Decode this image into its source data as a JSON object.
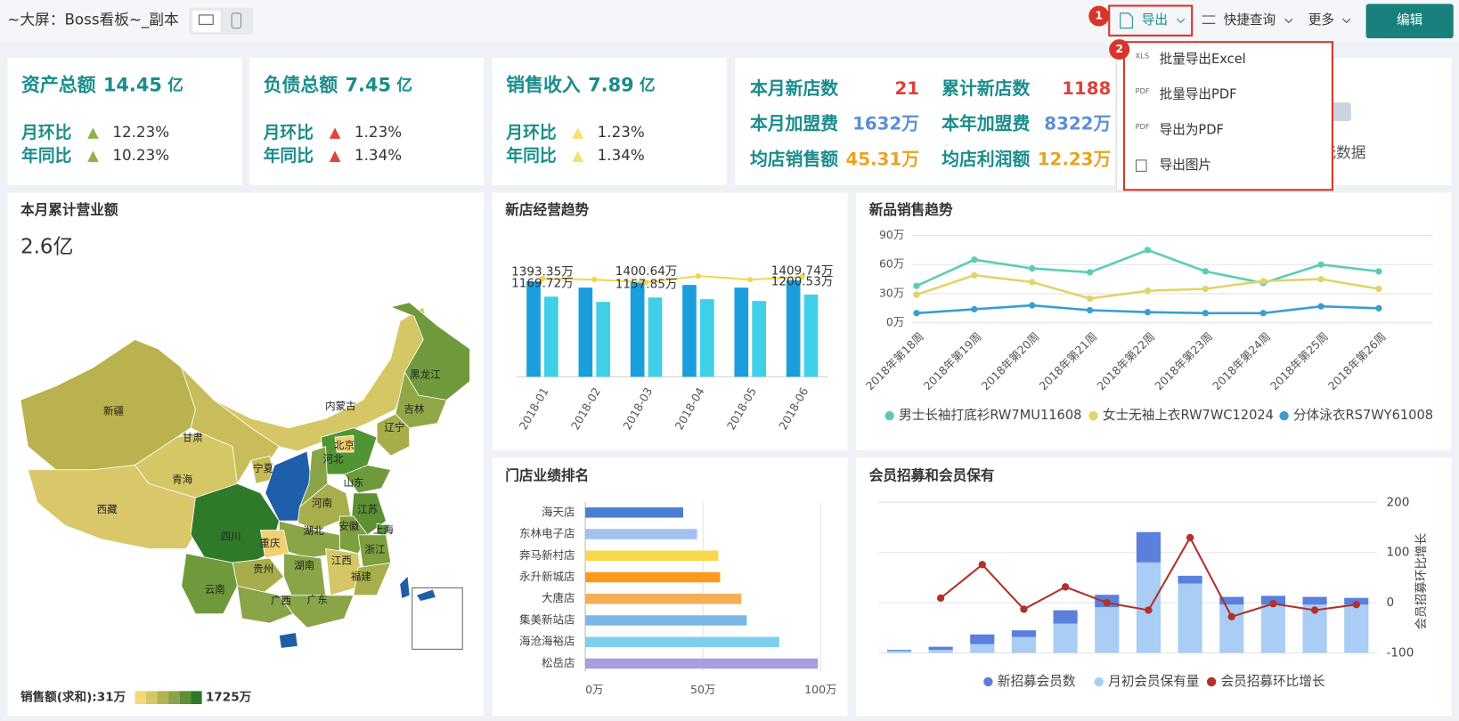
{
  "header": {
    "title": "~大屏：Boss看板~_副本",
    "export": "导出",
    "quick_query": "快捷查询",
    "more": "更多",
    "edit": "编辑",
    "step_badges": [
      "1",
      "2"
    ],
    "export_menu": [
      {
        "icon": "XLS",
        "label": "批量导出Excel"
      },
      {
        "icon": "PDF",
        "label": "批量导出PDF"
      },
      {
        "icon": "PDF",
        "label": "导出为PDF"
      },
      {
        "icon": null,
        "label": "导出图片"
      }
    ]
  },
  "kpi_cards": [
    {
      "title": "资产总额",
      "value": "14.45",
      "unit": "亿",
      "rows": [
        {
          "label": "月环比",
          "value": "12.23%",
          "arrow_color": "#8db34c"
        },
        {
          "label": "年同比",
          "value": "10.23%",
          "arrow_color": "#8db34c"
        }
      ]
    },
    {
      "title": "负债总额",
      "value": "7.45",
      "unit": "亿",
      "rows": [
        {
          "label": "月环比",
          "value": "1.23%",
          "arrow_color": "#e0463a"
        },
        {
          "label": "年同比",
          "value": "1.34%",
          "arrow_color": "#e0463a"
        }
      ]
    },
    {
      "title": "销售收入",
      "value": "7.89",
      "unit": "亿",
      "rows": [
        {
          "label": "月环比",
          "value": "1.23%",
          "arrow_color": "#f5e070"
        },
        {
          "label": "年同比",
          "value": "1.34%",
          "arrow_color": "#f5e070"
        }
      ]
    }
  ],
  "store_stats": [
    {
      "label": "本月新店数",
      "value": "21",
      "color": "#d9423a"
    },
    {
      "label": "累计新店数",
      "value": "1188",
      "color": "#d9423a"
    },
    {
      "label": "本月加盟费",
      "value": "1632万",
      "color": "#5b8fd6"
    },
    {
      "label": "本年加盟费",
      "value": "8322万",
      "color": "#5b8fd6"
    },
    {
      "label": "均店销售额",
      "value": "45.31万",
      "color": "#e8a420"
    },
    {
      "label": "均店利润额",
      "value": "12.23万",
      "color": "#e8a420"
    }
  ],
  "empty_card": {
    "text": "无数据"
  },
  "map_card": {
    "title": "本月累计营业额",
    "total": "2.6亿",
    "legend_label": "销售额(求和):31万",
    "legend_max": "1725万",
    "legend_colors": [
      "#f3d77a",
      "#d6c766",
      "#b3b350",
      "#8aa548",
      "#5d8f33",
      "#2f7a2a"
    ],
    "regions": [
      {
        "label": "新疆",
        "color": "#b9b24e"
      },
      {
        "label": "西藏",
        "color": "#d9c76a"
      },
      {
        "label": "青海",
        "color": "#d6c766"
      },
      {
        "label": "甘肃",
        "color": "#c8bd5a"
      },
      {
        "label": "内蒙古",
        "color": "#d6c766"
      },
      {
        "label": "黑龙江",
        "color": "#6f9a3b"
      },
      {
        "label": "吉林",
        "color": "#8fa845"
      },
      {
        "label": "辽宁",
        "color": "#a6ad4a"
      },
      {
        "label": "河北",
        "color": "#4f9533"
      },
      {
        "label": "北京",
        "color": "#f0d070"
      },
      {
        "label": "宁夏",
        "color": "#c6bb58"
      },
      {
        "label": null,
        "color": "#1f5ea8"
      },
      {
        "label": null,
        "color": "#8aa548"
      },
      {
        "label": "山东",
        "color": "#6f9a3b"
      },
      {
        "label": "河南",
        "color": "#a9ae4c"
      },
      {
        "label": "江苏",
        "color": "#5d8f33"
      },
      {
        "label": "安徽",
        "color": "#7d9f3e"
      },
      {
        "label": "上海",
        "color": "#4f9533"
      },
      {
        "label": "湖北",
        "color": "#8aa548"
      },
      {
        "label": "四川",
        "color": "#2f7a2a"
      },
      {
        "label": "重庆",
        "color": "#f0d070"
      },
      {
        "label": "贵州",
        "color": "#a8ad4b"
      },
      {
        "label": "湖南",
        "color": "#8aa548"
      },
      {
        "label": "江西",
        "color": "#d6c766"
      },
      {
        "label": "浙江",
        "color": "#7d9f3e"
      },
      {
        "label": "福建",
        "color": "#a9ae4c"
      },
      {
        "label": "云南",
        "color": "#6f9a3b"
      },
      {
        "label": "广西",
        "color": "#8aa548"
      },
      {
        "label": "广东",
        "color": "#8aa548"
      },
      {
        "label": null,
        "color": "#1f5ea8"
      }
    ]
  },
  "charts": [
    {
      "type": "combo",
      "title": "新店经营趋势",
      "categories": [
        "2018-01",
        "2018-02",
        "2018-03",
        "2018-04",
        "2018-05",
        "2018-06"
      ],
      "series": [
        {
          "type": "bar",
          "color": "#1a9fdc",
          "values": [
            1393.35,
            1302,
            1400.64,
            1341,
            1302,
            1409.74
          ],
          "value_labels": [
            "1393.35万",
            null,
            "1400.64万",
            null,
            null,
            "1409.74万"
          ]
        },
        {
          "type": "bar",
          "color": "#3fd0e8",
          "values": [
            1169.72,
            1094,
            1157.85,
            1133,
            1107,
            1200.53
          ],
          "value_labels": [
            "1169.72万",
            null,
            "1157.85万",
            null,
            null,
            "1200.53万"
          ]
        },
        {
          "type": "line",
          "color": "#f0d84a",
          "values": [
            1432,
            1419,
            1380,
            1471,
            1419,
            1458
          ]
        }
      ]
    },
    {
      "type": "line",
      "title": "新品销售趋势",
      "categories": [
        "2018年第18周",
        "2018年第19周",
        "2018年第20周",
        "2018年第21周",
        "2018年第22周",
        "2018年第23周",
        "2018年第24周",
        "2018年第25周",
        "2018年第26周"
      ],
      "ylim": [
        0,
        90
      ],
      "yticks": [
        {
          "value": 0,
          "label": "0万"
        },
        {
          "value": 30,
          "label": "30万"
        },
        {
          "value": 60,
          "label": "60万"
        },
        {
          "value": 90,
          "label": "90万"
        }
      ],
      "grid": true,
      "legend": "bottom",
      "series": [
        {
          "name": "男士长袖打底衫RW7MU11608",
          "color": "#5ccdb5",
          "values": [
            38,
            65,
            56,
            52,
            75,
            53,
            41,
            60,
            53
          ]
        },
        {
          "name": "女士无袖上衣RW7WC12024",
          "color": "#e2d36a",
          "values": [
            29,
            49,
            42,
            25,
            33,
            35,
            43,
            45,
            35
          ]
        },
        {
          "name": "分体泳衣RS7WY61008",
          "color": "#3a9fcf",
          "values": [
            10,
            14,
            18,
            13,
            11,
            10,
            10,
            17,
            15
          ]
        }
      ]
    },
    {
      "type": "barh",
      "title": "门店业绩排名",
      "categories": [
        "海天店",
        "东林电子店",
        "奔马新村店",
        "永升新城店",
        "大唐店",
        "集美新站店",
        "海沧海裕店",
        "松岳店"
      ],
      "values": [
        41.6,
        47.5,
        56.5,
        57.3,
        66.3,
        68.6,
        82.4,
        98.8
      ],
      "colors": [
        "#4a7fd0",
        "#a3c1ef",
        "#f9d84a",
        "#f99b1c",
        "#f5ae56",
        "#7ab6e8",
        "#7dcff0",
        "#a89ee0"
      ],
      "xlim": [
        0,
        100
      ],
      "xticks": [
        {
          "value": 0,
          "label": "0万"
        },
        {
          "value": 50,
          "label": "50万"
        },
        {
          "value": 100,
          "label": "100万"
        }
      ],
      "grid": true
    },
    {
      "type": "combo",
      "title": "会员招募和会员保有",
      "categories": [
        null,
        null,
        null,
        null,
        null,
        null,
        null,
        null,
        null,
        null,
        null,
        null
      ],
      "series": [
        {
          "name": "新招募会员数",
          "type": "bar",
          "color": "#5b7fdc",
          "values": [
            2,
            6,
            19,
            13,
            26,
            24,
            59,
            15,
            15,
            17,
            15,
            13
          ]
        },
        {
          "name": "月初会员保有量",
          "type": "bar",
          "color": "#a9cdf4",
          "values": [
            4,
            6,
            17,
            31,
            57,
            89,
            176,
            135,
            94,
            94,
            94,
            94
          ]
        },
        {
          "name": "会员招募环比增长",
          "type": "line",
          "axis": "y2",
          "color": "#b0322a",
          "values": [
            null,
            9.3,
            75.9,
            -13,
            31.5,
            0,
            -14.8,
            129.6,
            -27.8,
            -1.9,
            -14.8,
            -3.7
          ]
        }
      ],
      "y2lim": [
        -100,
        200
      ],
      "y2ticks": [
        -100,
        0,
        100,
        200
      ],
      "y2label": "会员招募环比增长",
      "legend": "bottom"
    }
  ]
}
